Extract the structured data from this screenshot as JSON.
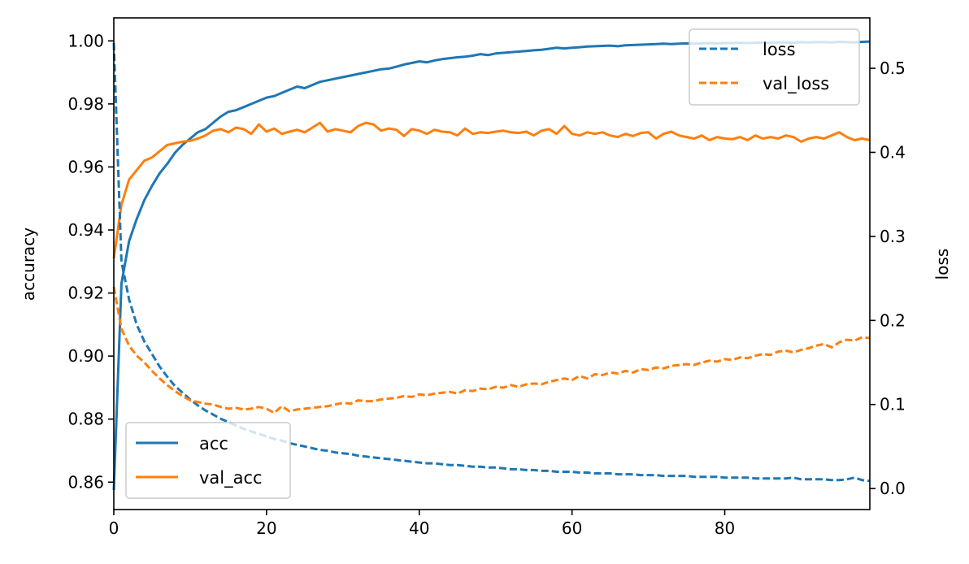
{
  "chart_data": {
    "type": "line",
    "xlim": [
      0,
      99
    ],
    "x_ticks": [
      0,
      20,
      40,
      60,
      80
    ],
    "left_axis": {
      "label": "accuracy",
      "lim": [
        0.8513,
        1.0073
      ],
      "ticks": [
        "0.86",
        "0.88",
        "0.90",
        "0.92",
        "0.94",
        "0.96",
        "0.98",
        "1.00"
      ]
    },
    "right_axis": {
      "label": "loss",
      "lim": [
        -0.025,
        0.56
      ],
      "ticks": [
        "0.0",
        "0.1",
        "0.2",
        "0.3",
        "0.4",
        "0.5"
      ]
    },
    "series": [
      {
        "name": "acc",
        "axis": "left",
        "style": "solid",
        "color": "#1f77b4",
        "values": [
          0.8575,
          0.923,
          0.9365,
          0.9435,
          0.9495,
          0.954,
          0.958,
          0.961,
          0.9645,
          0.967,
          0.969,
          0.971,
          0.972,
          0.974,
          0.976,
          0.9775,
          0.978,
          0.979,
          0.98,
          0.981,
          0.982,
          0.9825,
          0.9835,
          0.9845,
          0.9855,
          0.985,
          0.986,
          0.987,
          0.9875,
          0.988,
          0.9885,
          0.989,
          0.9895,
          0.99,
          0.9905,
          0.991,
          0.9912,
          0.9918,
          0.9925,
          0.993,
          0.9935,
          0.9932,
          0.9938,
          0.9942,
          0.9945,
          0.9948,
          0.995,
          0.9953,
          0.9958,
          0.9955,
          0.996,
          0.9962,
          0.9964,
          0.9966,
          0.9968,
          0.997,
          0.9972,
          0.9975,
          0.9978,
          0.9976,
          0.9978,
          0.998,
          0.9982,
          0.9983,
          0.9984,
          0.9985,
          0.9983,
          0.9986,
          0.9987,
          0.9988,
          0.9989,
          0.999,
          0.9991,
          0.999,
          0.9991,
          0.9992,
          0.9991,
          0.9992,
          0.9993,
          0.9992,
          0.9993,
          0.9993,
          0.9994,
          0.9993,
          0.9994,
          0.9995,
          0.9994,
          0.9995,
          0.9995,
          0.9994,
          0.9996,
          0.9995,
          0.9996,
          0.9996,
          0.9995,
          0.9997,
          0.9996,
          0.9995,
          0.9997,
          0.9998
        ]
      },
      {
        "name": "val_acc",
        "axis": "left",
        "style": "solid",
        "color": "#ff7f0e",
        "values": [
          0.931,
          0.948,
          0.956,
          0.959,
          0.962,
          0.963,
          0.965,
          0.967,
          0.9675,
          0.968,
          0.9683,
          0.969,
          0.97,
          0.9715,
          0.972,
          0.971,
          0.9725,
          0.972,
          0.9705,
          0.9735,
          0.9712,
          0.9722,
          0.9705,
          0.9712,
          0.9718,
          0.971,
          0.9725,
          0.974,
          0.9712,
          0.972,
          0.9715,
          0.971,
          0.973,
          0.974,
          0.9735,
          0.9715,
          0.9722,
          0.9718,
          0.9698,
          0.972,
          0.9715,
          0.9705,
          0.9718,
          0.9712,
          0.971,
          0.97,
          0.9722,
          0.9705,
          0.971,
          0.9708,
          0.9712,
          0.9715,
          0.971,
          0.9708,
          0.9712,
          0.97,
          0.9715,
          0.972,
          0.9705,
          0.973,
          0.9705,
          0.97,
          0.971,
          0.9705,
          0.971,
          0.97,
          0.9695,
          0.9705,
          0.9698,
          0.9708,
          0.971,
          0.969,
          0.9705,
          0.9712,
          0.97,
          0.9695,
          0.969,
          0.97,
          0.9685,
          0.9695,
          0.969,
          0.9688,
          0.9695,
          0.9685,
          0.97,
          0.969,
          0.9695,
          0.969,
          0.97,
          0.9695,
          0.968,
          0.969,
          0.9695,
          0.969,
          0.97,
          0.971,
          0.9695,
          0.9685,
          0.969,
          0.9685
        ]
      },
      {
        "name": "loss",
        "axis": "right",
        "style": "dashed",
        "color": "#1f77b4",
        "values": [
          0.53,
          0.27,
          0.225,
          0.195,
          0.175,
          0.16,
          0.145,
          0.133,
          0.122,
          0.114,
          0.106,
          0.099,
          0.093,
          0.088,
          0.083,
          0.079,
          0.075,
          0.071,
          0.068,
          0.065,
          0.062,
          0.059,
          0.057,
          0.054,
          0.052,
          0.05,
          0.048,
          0.046,
          0.045,
          0.043,
          0.042,
          0.041,
          0.039,
          0.038,
          0.037,
          0.036,
          0.035,
          0.034,
          0.033,
          0.032,
          0.031,
          0.03,
          0.03,
          0.029,
          0.028,
          0.028,
          0.027,
          0.026,
          0.026,
          0.025,
          0.025,
          0.024,
          0.023,
          0.023,
          0.022,
          0.022,
          0.021,
          0.021,
          0.02,
          0.02,
          0.02,
          0.019,
          0.019,
          0.018,
          0.018,
          0.018,
          0.017,
          0.017,
          0.017,
          0.016,
          0.016,
          0.016,
          0.015,
          0.015,
          0.015,
          0.015,
          0.014,
          0.014,
          0.014,
          0.014,
          0.013,
          0.013,
          0.013,
          0.013,
          0.012,
          0.012,
          0.012,
          0.012,
          0.012,
          0.013,
          0.011,
          0.011,
          0.011,
          0.011,
          0.01,
          0.01,
          0.011,
          0.013,
          0.01,
          0.009
        ]
      },
      {
        "name": "val_loss",
        "axis": "right",
        "style": "dashed",
        "color": "#ff7f0e",
        "values": [
          0.24,
          0.19,
          0.17,
          0.158,
          0.15,
          0.14,
          0.131,
          0.123,
          0.116,
          0.11,
          0.105,
          0.103,
          0.101,
          0.1,
          0.097,
          0.095,
          0.096,
          0.094,
          0.095,
          0.097,
          0.095,
          0.09,
          0.098,
          0.092,
          0.094,
          0.095,
          0.096,
          0.097,
          0.098,
          0.1,
          0.102,
          0.101,
          0.105,
          0.104,
          0.104,
          0.106,
          0.107,
          0.108,
          0.11,
          0.109,
          0.112,
          0.111,
          0.113,
          0.114,
          0.115,
          0.113,
          0.117,
          0.116,
          0.119,
          0.118,
          0.121,
          0.12,
          0.123,
          0.121,
          0.124,
          0.125,
          0.124,
          0.127,
          0.129,
          0.131,
          0.129,
          0.134,
          0.131,
          0.136,
          0.135,
          0.138,
          0.137,
          0.14,
          0.138,
          0.142,
          0.141,
          0.144,
          0.143,
          0.146,
          0.147,
          0.148,
          0.147,
          0.15,
          0.152,
          0.151,
          0.154,
          0.153,
          0.156,
          0.155,
          0.158,
          0.16,
          0.159,
          0.163,
          0.164,
          0.162,
          0.165,
          0.167,
          0.17,
          0.172,
          0.168,
          0.174,
          0.177,
          0.176,
          0.18,
          0.179
        ]
      }
    ],
    "legends": [
      {
        "position": "upper-right",
        "entries": [
          "loss",
          "val_loss"
        ]
      },
      {
        "position": "lower-left",
        "entries": [
          "acc",
          "val_acc"
        ]
      }
    ],
    "grid": false
  }
}
